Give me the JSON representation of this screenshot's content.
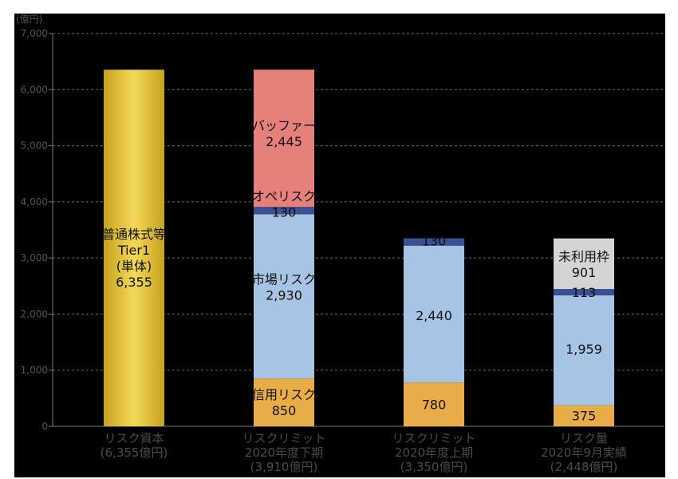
{
  "chart_data": {
    "type": "bar",
    "stacked": true,
    "unit_label": "(億円)",
    "ylim": [
      0,
      7000
    ],
    "yticks": [
      0,
      1000,
      2000,
      3000,
      4000,
      5000,
      6000,
      7000
    ],
    "ytick_labels": [
      "0",
      "1,000",
      "2,000",
      "3,000",
      "4,000",
      "5,000",
      "6,000",
      "7,000"
    ],
    "grid": true,
    "categories": [
      {
        "lines": [
          "リスク資本",
          "(6,355億円)"
        ]
      },
      {
        "lines": [
          "リスクリミット",
          "2020年度下期",
          "(3,910億円)"
        ]
      },
      {
        "lines": [
          "リスクリミット",
          "2020年度上期",
          "(3,350億円)"
        ]
      },
      {
        "lines": [
          "リスク量",
          "2020年9月実績",
          "(2,448億円)"
        ]
      }
    ],
    "bars": [
      {
        "segments": [
          {
            "name": "普通株式等Tier1(単体)",
            "value": 6355,
            "color": "#e8c53a",
            "label": [
              "普通株式等",
              "Tier1",
              "(単体)",
              "6,355"
            ],
            "label_y": 3000
          }
        ]
      },
      {
        "segments": [
          {
            "name": "信用リスク",
            "value": 850,
            "color": "#e8ad47",
            "label": [
              "信用リスク",
              "850"
            ],
            "label_y": 430
          },
          {
            "name": "市場リスク",
            "value": 2930,
            "color": "#a8c4e4",
            "label": [
              "市場リスク",
              "2,930"
            ],
            "label_y": 2480
          },
          {
            "name": "オペリスク",
            "value": 130,
            "color": "#3b4f93",
            "label": [
              "オペリスク",
              "130"
            ],
            "label_y": 3960
          },
          {
            "name": "バッファー",
            "value": 2445,
            "color": "#e5807b",
            "label": [
              "バッファー",
              "2,445"
            ],
            "label_y": 5220
          }
        ]
      },
      {
        "segments": [
          {
            "name": "信用リスク",
            "value": 780,
            "color": "#e8ad47",
            "label": [
              "780"
            ],
            "label_y": 390
          },
          {
            "name": "市場リスク",
            "value": 2440,
            "color": "#a8c4e4",
            "label": [
              "2,440"
            ],
            "label_y": 1980
          },
          {
            "name": "オペリスク",
            "value": 130,
            "color": "#3b4f93",
            "label": [
              "130"
            ],
            "label_y": 3310
          }
        ]
      },
      {
        "segments": [
          {
            "name": "信用リスク",
            "value": 375,
            "color": "#e8ad47",
            "label": [
              "375"
            ],
            "label_y": 190
          },
          {
            "name": "市場リスク",
            "value": 1959,
            "color": "#a8c4e4",
            "label": [
              "1,959"
            ],
            "label_y": 1380
          },
          {
            "name": "オペリスク",
            "value": 113,
            "color": "#3b4f93",
            "label": [
              "113"
            ],
            "label_y": 2390
          },
          {
            "name": "未利用枠",
            "value": 901,
            "color": "#d4d4d4",
            "label": [
              "未利用枠",
              "901"
            ],
            "label_y": 2890
          }
        ]
      }
    ]
  }
}
